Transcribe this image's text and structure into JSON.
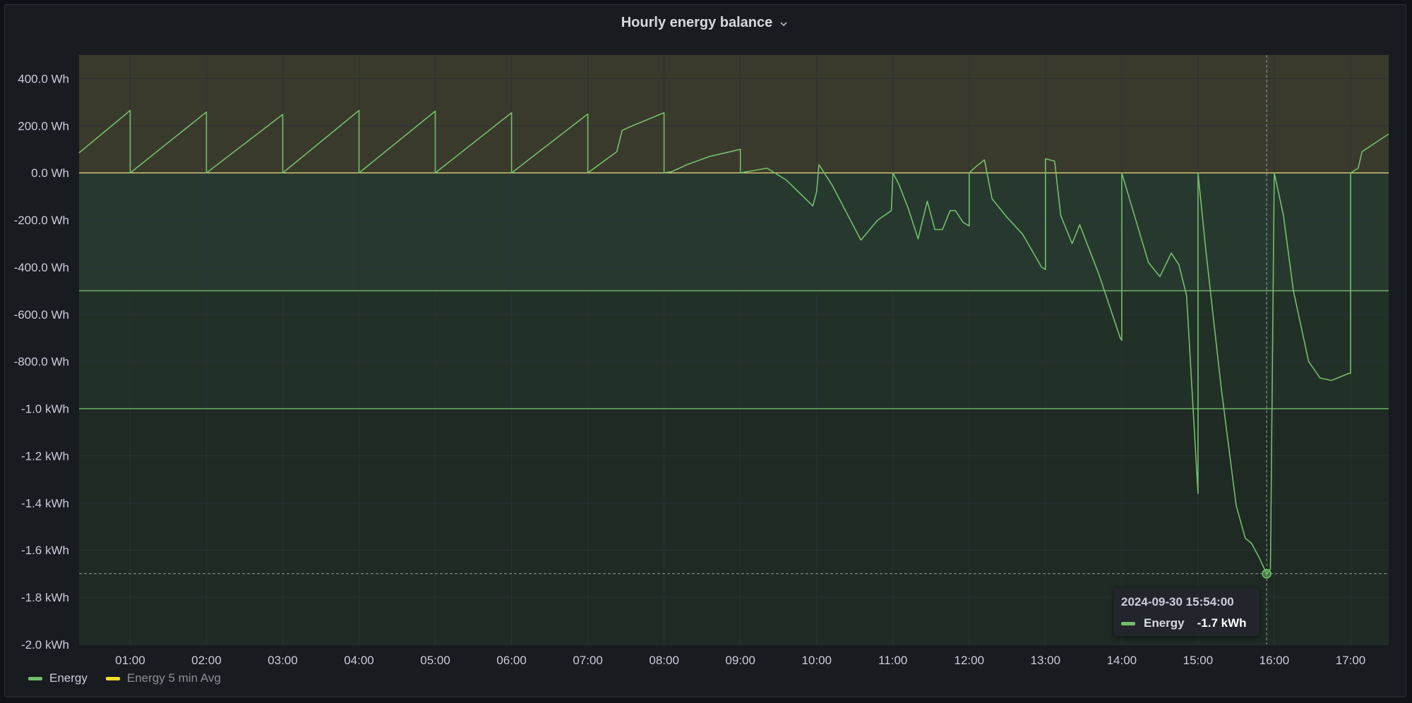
{
  "panel": {
    "title": "Hourly energy balance"
  },
  "colors": {
    "energy": "#73bf69",
    "energy_avg": "#fade2a",
    "band_positive": "#3a3a2c",
    "band_negative_near": "#27392f",
    "band_negative_mid": "#223128",
    "band_negative_far": "#1e2a23",
    "grid": "#2b3139",
    "threshold": "#73bf69",
    "zero_line": "#e0d27a"
  },
  "legend": [
    {
      "label": "Energy",
      "color": "#73bf69",
      "dim": false
    },
    {
      "label": "Energy 5 min Avg",
      "color": "#fade2a",
      "dim": true
    }
  ],
  "tooltip": {
    "time": "2024-09-30 15:54:00",
    "series": "Energy",
    "value": "-1.7 kWh"
  },
  "chart_data": {
    "type": "line",
    "title": "Hourly energy balance",
    "xlabel": "",
    "ylabel": "",
    "x_unit": "hour of day (2024-09-30)",
    "y_unit": "Wh",
    "xlim": [
      0.33,
      17.5
    ],
    "ylim": [
      -2000,
      500
    ],
    "y_ticks": [
      {
        "v": 400,
        "label": "400.0 Wh"
      },
      {
        "v": 200,
        "label": "200.0 Wh"
      },
      {
        "v": 0,
        "label": "0.0 Wh"
      },
      {
        "v": -200,
        "label": "-200.0 Wh"
      },
      {
        "v": -400,
        "label": "-400.0 Wh"
      },
      {
        "v": -600,
        "label": "-600.0 Wh"
      },
      {
        "v": -800,
        "label": "-800.0 Wh"
      },
      {
        "v": -1000,
        "label": "-1.0 kWh"
      },
      {
        "v": -1200,
        "label": "-1.2 kWh"
      },
      {
        "v": -1400,
        "label": "-1.4 kWh"
      },
      {
        "v": -1600,
        "label": "-1.6 kWh"
      },
      {
        "v": -1800,
        "label": "-1.8 kWh"
      },
      {
        "v": -2000,
        "label": "-2.0 kWh"
      }
    ],
    "x_ticks": [
      {
        "v": 1,
        "label": "01:00"
      },
      {
        "v": 2,
        "label": "02:00"
      },
      {
        "v": 3,
        "label": "03:00"
      },
      {
        "v": 4,
        "label": "04:00"
      },
      {
        "v": 5,
        "label": "05:00"
      },
      {
        "v": 6,
        "label": "06:00"
      },
      {
        "v": 7,
        "label": "07:00"
      },
      {
        "v": 8,
        "label": "08:00"
      },
      {
        "v": 9,
        "label": "09:00"
      },
      {
        "v": 10,
        "label": "10:00"
      },
      {
        "v": 11,
        "label": "11:00"
      },
      {
        "v": 12,
        "label": "12:00"
      },
      {
        "v": 13,
        "label": "13:00"
      },
      {
        "v": 14,
        "label": "14:00"
      },
      {
        "v": 15,
        "label": "15:00"
      },
      {
        "v": 16,
        "label": "16:00"
      },
      {
        "v": 17,
        "label": "17:00"
      }
    ],
    "thresholds": [
      0,
      -500,
      -1000
    ],
    "grid": true,
    "legend_position": "bottom-left",
    "crosshair": {
      "x": 15.9,
      "y": -1700
    },
    "series": [
      {
        "name": "Energy",
        "points": [
          [
            0.33,
            85
          ],
          [
            1.0,
            265
          ],
          [
            1.0,
            0
          ],
          [
            2.0,
            258
          ],
          [
            2.0,
            0
          ],
          [
            3.0,
            248
          ],
          [
            3.0,
            0
          ],
          [
            4.0,
            265
          ],
          [
            4.0,
            0
          ],
          [
            5.0,
            262
          ],
          [
            5.0,
            0
          ],
          [
            6.0,
            255
          ],
          [
            6.0,
            0
          ],
          [
            7.0,
            250
          ],
          [
            7.0,
            0
          ],
          [
            7.38,
            90
          ],
          [
            7.45,
            180
          ],
          [
            7.55,
            195
          ],
          [
            8.0,
            255
          ],
          [
            8.0,
            0
          ],
          [
            8.1,
            5
          ],
          [
            8.3,
            35
          ],
          [
            8.6,
            70
          ],
          [
            9.0,
            100
          ],
          [
            9.0,
            0
          ],
          [
            9.35,
            20
          ],
          [
            9.6,
            -30
          ],
          [
            9.95,
            -140
          ],
          [
            10.0,
            -80
          ],
          [
            10.03,
            35
          ],
          [
            10.2,
            -50
          ],
          [
            10.58,
            -285
          ],
          [
            10.8,
            -200
          ],
          [
            10.98,
            -160
          ],
          [
            11.0,
            0
          ],
          [
            11.08,
            -50
          ],
          [
            11.2,
            -150
          ],
          [
            11.33,
            -280
          ],
          [
            11.45,
            -120
          ],
          [
            11.55,
            -240
          ],
          [
            11.65,
            -240
          ],
          [
            11.75,
            -160
          ],
          [
            11.82,
            -160
          ],
          [
            11.92,
            -210
          ],
          [
            12.0,
            -225
          ],
          [
            12.0,
            0
          ],
          [
            12.1,
            30
          ],
          [
            12.2,
            55
          ],
          [
            12.3,
            -110
          ],
          [
            12.5,
            -190
          ],
          [
            12.7,
            -260
          ],
          [
            12.95,
            -400
          ],
          [
            13.0,
            -410
          ],
          [
            13.0,
            60
          ],
          [
            13.12,
            50
          ],
          [
            13.2,
            -180
          ],
          [
            13.35,
            -300
          ],
          [
            13.45,
            -220
          ],
          [
            13.7,
            -430
          ],
          [
            13.98,
            -700
          ],
          [
            14.0,
            -710
          ],
          [
            14.0,
            0
          ],
          [
            14.35,
            -380
          ],
          [
            14.5,
            -440
          ],
          [
            14.65,
            -340
          ],
          [
            14.75,
            -390
          ],
          [
            14.85,
            -520
          ],
          [
            15.0,
            -1360
          ],
          [
            15.0,
            0
          ],
          [
            15.1,
            -320
          ],
          [
            15.3,
            -900
          ],
          [
            15.5,
            -1410
          ],
          [
            15.62,
            -1550
          ],
          [
            15.7,
            -1570
          ],
          [
            15.8,
            -1630
          ],
          [
            15.9,
            -1700
          ],
          [
            15.95,
            -1680
          ],
          [
            16.0,
            0
          ],
          [
            16.12,
            -180
          ],
          [
            16.25,
            -500
          ],
          [
            16.45,
            -800
          ],
          [
            16.6,
            -870
          ],
          [
            16.75,
            -880
          ],
          [
            16.98,
            -850
          ],
          [
            17.0,
            -850
          ],
          [
            17.0,
            0
          ],
          [
            17.1,
            20
          ],
          [
            17.15,
            90
          ],
          [
            17.5,
            165
          ]
        ]
      }
    ]
  }
}
